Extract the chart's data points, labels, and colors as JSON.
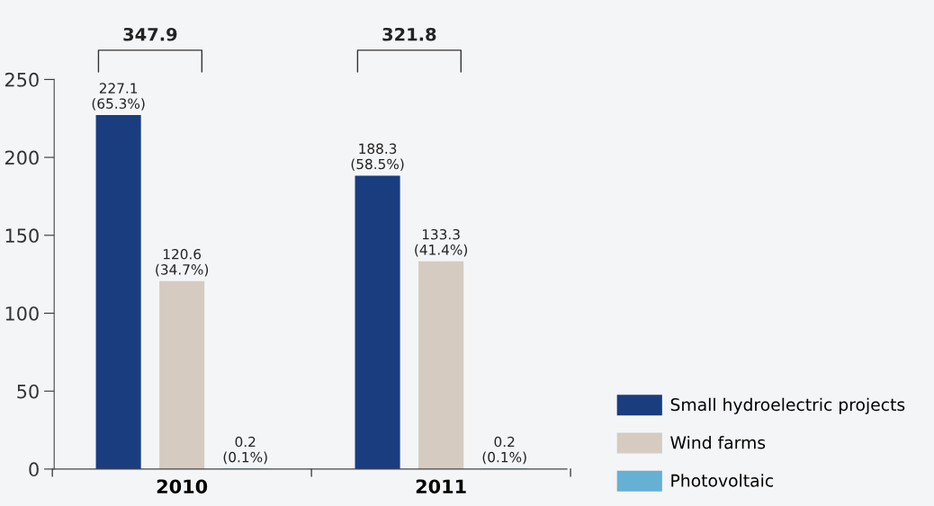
{
  "chart_data": {
    "type": "bar",
    "categories": [
      "2010",
      "2011"
    ],
    "series": [
      {
        "name": "Small hydroelectric projects",
        "color": "#1a3d80",
        "values": [
          227.1,
          188.3
        ],
        "value_labels": [
          "227.1\n(65.3%)",
          "188.3\n(58.5%)"
        ]
      },
      {
        "name": "Wind farms",
        "color": "#d5cbc1",
        "values": [
          120.6,
          133.3
        ],
        "value_labels": [
          "120.6\n(34.7%)",
          "133.3\n(41.4%)"
        ]
      },
      {
        "name": "Photovoltaic",
        "color": "#66b1d3",
        "values": [
          0.2,
          0.2
        ],
        "value_labels": [
          "0.2\n(0.1%)",
          "0.2\n(0.1%)"
        ]
      }
    ],
    "annotations": [
      "347.9",
      "321.8"
    ],
    "ylim": [
      0,
      250
    ],
    "yticks": [
      0,
      50,
      100,
      150,
      200,
      250
    ],
    "grid": false,
    "legend": "bottom right"
  }
}
